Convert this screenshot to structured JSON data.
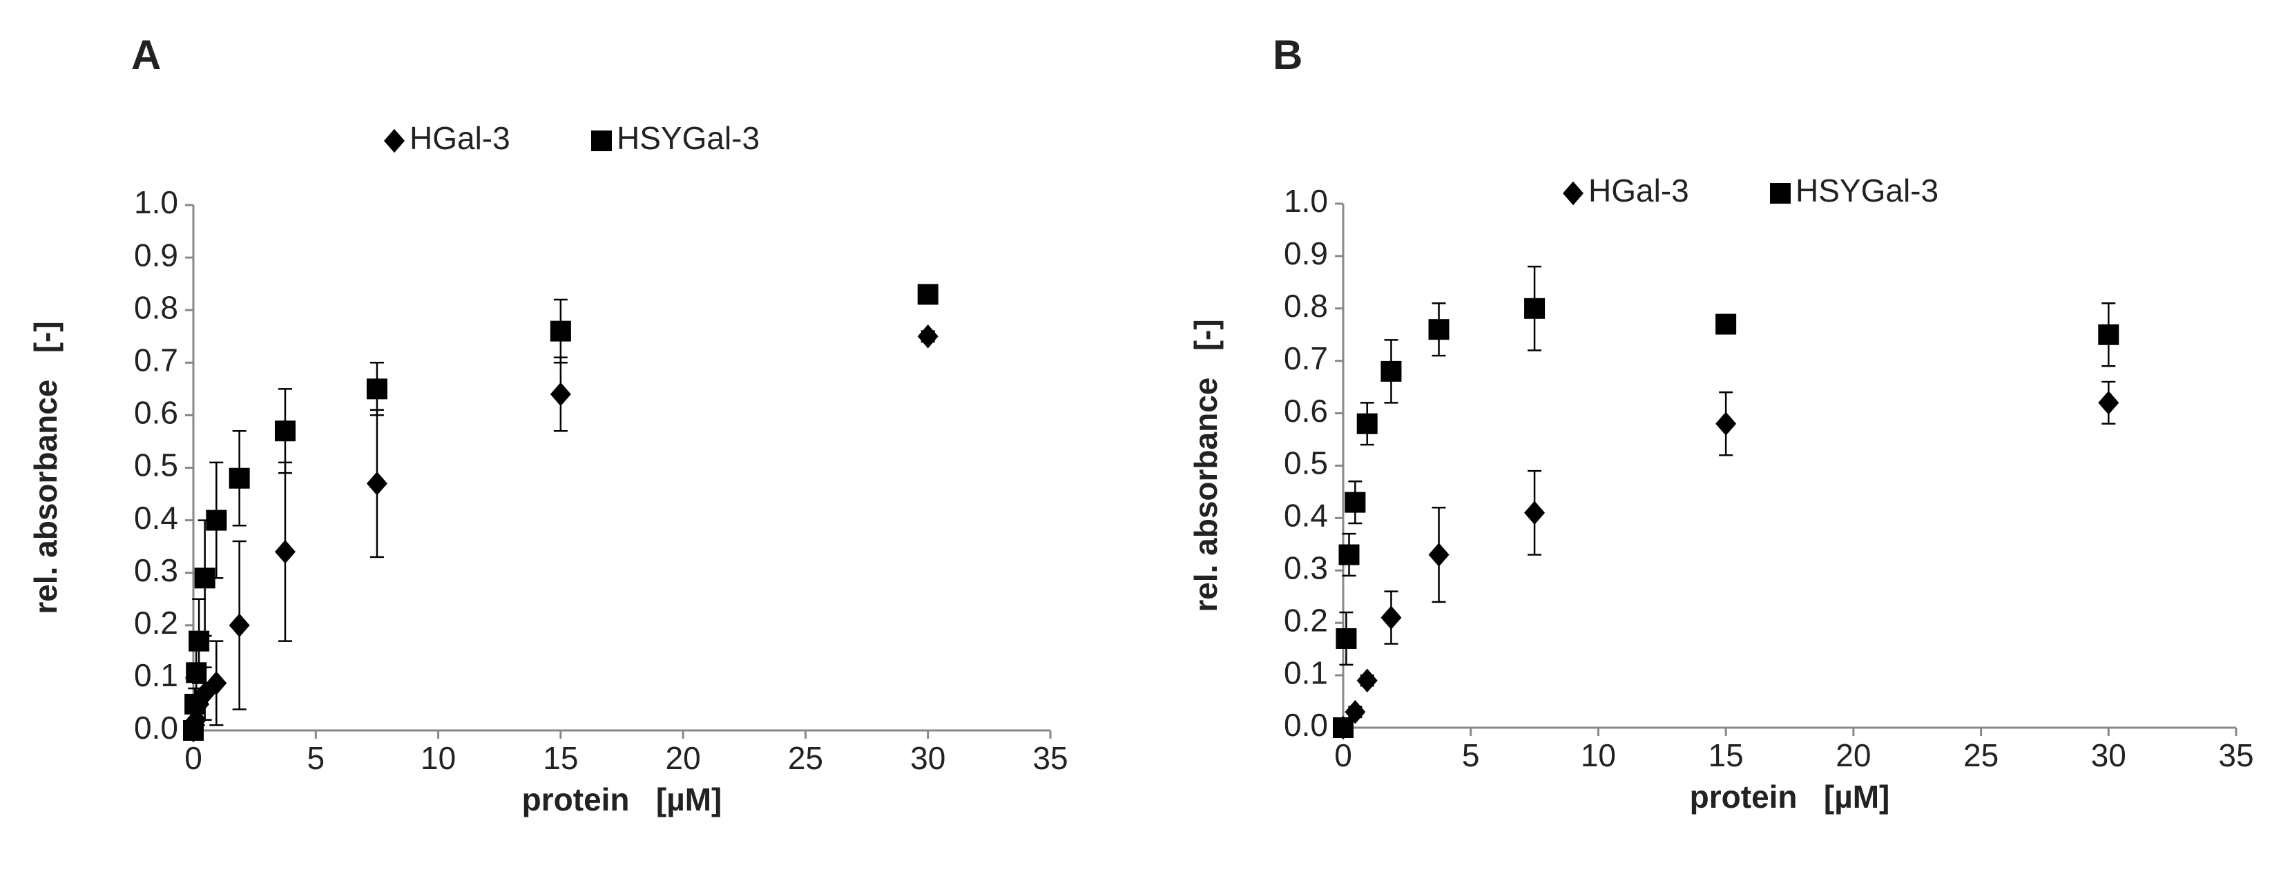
{
  "chart_data": [
    {
      "type": "scatter",
      "label": "A",
      "xlabel": "protein   [µM]",
      "ylabel": "rel. absorbance   [-]",
      "xlim": [
        0,
        35
      ],
      "xticks": [
        0,
        5,
        10,
        15,
        20,
        25,
        30,
        35
      ],
      "ylim": [
        0,
        1
      ],
      "yticks": [
        {
          "value": 0,
          "label": "0.0"
        },
        {
          "value": 0.1,
          "label": "0.1"
        },
        {
          "value": 0.2,
          "label": "0.2"
        },
        {
          "value": 0.3,
          "label": "0.3"
        },
        {
          "value": 0.4,
          "label": "0.4"
        },
        {
          "value": 0.5,
          "label": "0.5"
        },
        {
          "value": 0.6,
          "label": "0.6"
        },
        {
          "value": 0.7,
          "label": "0.7"
        },
        {
          "value": 0.8,
          "label": "0.8"
        },
        {
          "value": 0.9,
          "label": "0.9"
        },
        {
          "value": 1,
          "label": "1.0"
        }
      ],
      "legend": "top",
      "series": [
        {
          "name": "HGal-3",
          "color": "#000000",
          "marker": "diamond",
          "x": [
            0,
            0.06,
            0.12,
            0.23,
            0.47,
            0.94,
            1.88,
            3.75,
            7.5,
            15,
            30
          ],
          "values": [
            0,
            0.01,
            0.02,
            0.05,
            0.07,
            0.09,
            0.2,
            0.34,
            0.47,
            0.64,
            0.75
          ],
          "errors": [
            0.01,
            0.01,
            0.02,
            0.03,
            0.05,
            0.08,
            0.16,
            0.17,
            0.14,
            0.07,
            0.01
          ]
        },
        {
          "name": "HSYGal-3",
          "color": "#000000",
          "marker": "square",
          "x": [
            0,
            0.06,
            0.12,
            0.23,
            0.47,
            0.94,
            1.88,
            3.75,
            7.5,
            15,
            30
          ],
          "values": [
            0,
            0.05,
            0.11,
            0.17,
            0.29,
            0.4,
            0.48,
            0.57,
            0.65,
            0.76,
            0.83
          ],
          "errors": [
            0.01,
            0.03,
            0.05,
            0.08,
            0.11,
            0.11,
            0.09,
            0.08,
            0.05,
            0.06,
            0.01
          ]
        }
      ]
    },
    {
      "type": "scatter",
      "label": "B",
      "xlabel": "protein   [µM]",
      "ylabel": "rel. absorbance   [-]",
      "xlim": [
        0,
        35
      ],
      "xticks": [
        0,
        5,
        10,
        15,
        20,
        25,
        30,
        35
      ],
      "ylim": [
        0,
        1
      ],
      "yticks": [
        {
          "value": 0,
          "label": "0.0"
        },
        {
          "value": 0.1,
          "label": "0.1"
        },
        {
          "value": 0.2,
          "label": "0.2"
        },
        {
          "value": 0.3,
          "label": "0.3"
        },
        {
          "value": 0.4,
          "label": "0.4"
        },
        {
          "value": 0.5,
          "label": "0.5"
        },
        {
          "value": 0.6,
          "label": "0.6"
        },
        {
          "value": 0.7,
          "label": "0.7"
        },
        {
          "value": 0.8,
          "label": "0.8"
        },
        {
          "value": 0.9,
          "label": "0.9"
        },
        {
          "value": 1,
          "label": "1.0"
        }
      ],
      "legend": "top",
      "series": [
        {
          "name": "HGal-3",
          "color": "#000000",
          "marker": "diamond",
          "x": [
            0,
            0.47,
            0.94,
            1.88,
            3.75,
            7.5,
            15,
            30
          ],
          "values": [
            0,
            0.03,
            0.09,
            0.21,
            0.33,
            0.41,
            0.58,
            0.62
          ],
          "errors": [
            0.01,
            0.01,
            0.01,
            0.05,
            0.09,
            0.08,
            0.06,
            0.04
          ]
        },
        {
          "name": "HSYGal-3",
          "color": "#000000",
          "marker": "square",
          "x": [
            0,
            0.12,
            0.23,
            0.47,
            0.94,
            1.88,
            3.75,
            7.5,
            15,
            30
          ],
          "values": [
            0,
            0.17,
            0.33,
            0.43,
            0.58,
            0.68,
            0.76,
            0.8,
            0.77,
            0.75
          ],
          "errors": [
            0.01,
            0.05,
            0.04,
            0.04,
            0.04,
            0.06,
            0.05,
            0.08,
            0.01,
            0.06
          ]
        }
      ]
    }
  ]
}
